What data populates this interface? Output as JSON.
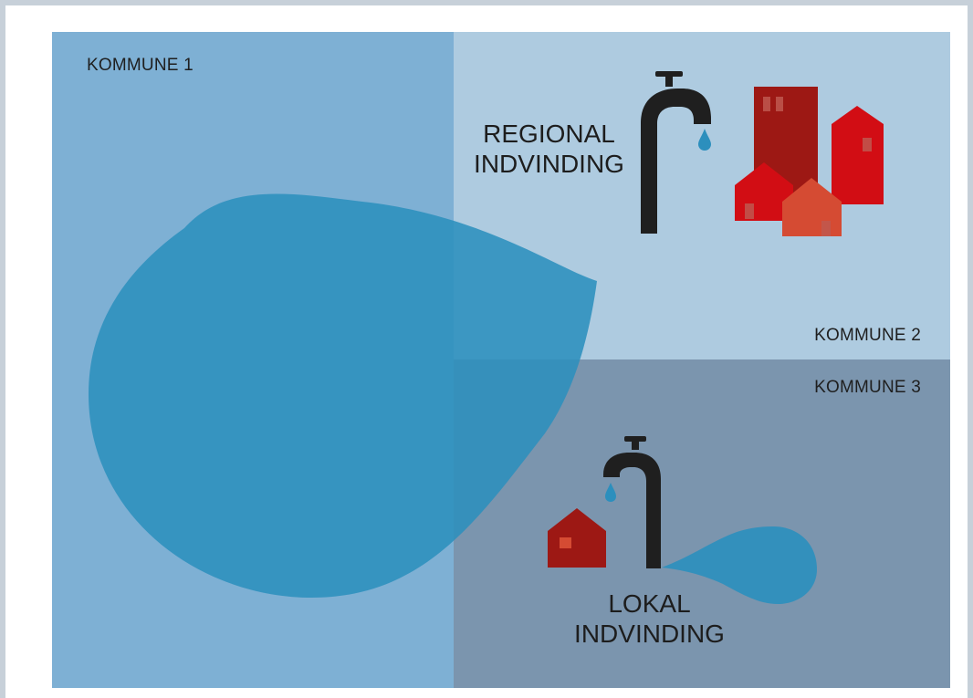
{
  "colors": {
    "frame": "#c7d0d9",
    "kommune_1": "#7eb0d4",
    "kommune_2": "#aecbe0",
    "kommune_3": "#7b95ae",
    "water_drop": "#2c8fbd",
    "tap": "#1f1f1f",
    "building_dark_red": "#9d1814",
    "building_red": "#d20d14",
    "building_orange": "#d54b33"
  },
  "zones": [
    {
      "label": "KOMMUNE 1"
    },
    {
      "label": "KOMMUNE 2"
    },
    {
      "label": "KOMMUNE 3"
    }
  ],
  "regional": {
    "line1": "REGIONAL",
    "line2": "INDVINDING"
  },
  "local": {
    "line1": "LOKAL",
    "line2": "INDVINDING"
  },
  "icons": {
    "tap_regional": "water-tap-icon",
    "tap_local": "water-tap-icon",
    "drip": "water-drop-icon",
    "houses": "house-icon",
    "reservoir": "water-drop-icon"
  }
}
